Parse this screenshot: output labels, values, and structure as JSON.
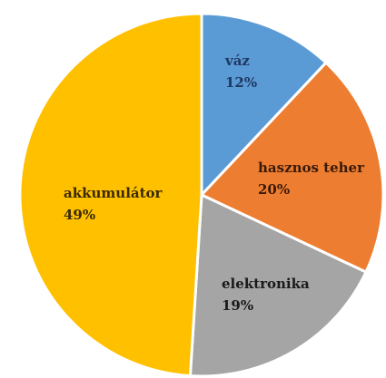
{
  "chart_data": {
    "type": "pie",
    "title": "",
    "slices": [
      {
        "label": "váz",
        "value": 12,
        "percent_label": "12%",
        "color": "#5b9bd5",
        "text_color": "#1f3864"
      },
      {
        "label": "hasznos teher",
        "value": 20,
        "percent_label": "20%",
        "color": "#ed7d31",
        "text_color": "#3a1a08"
      },
      {
        "label": "elektronika",
        "value": 19,
        "percent_label": "19%",
        "color": "#a5a5a5",
        "text_color": "#1a1a1a"
      },
      {
        "label": "akkumulátor",
        "value": 49,
        "percent_label": "49%",
        "color": "#ffc000",
        "text_color": "#3a2a00"
      }
    ],
    "start_angle_deg": 0,
    "direction": "clockwise",
    "legend": "none",
    "data_labels": "inside"
  }
}
